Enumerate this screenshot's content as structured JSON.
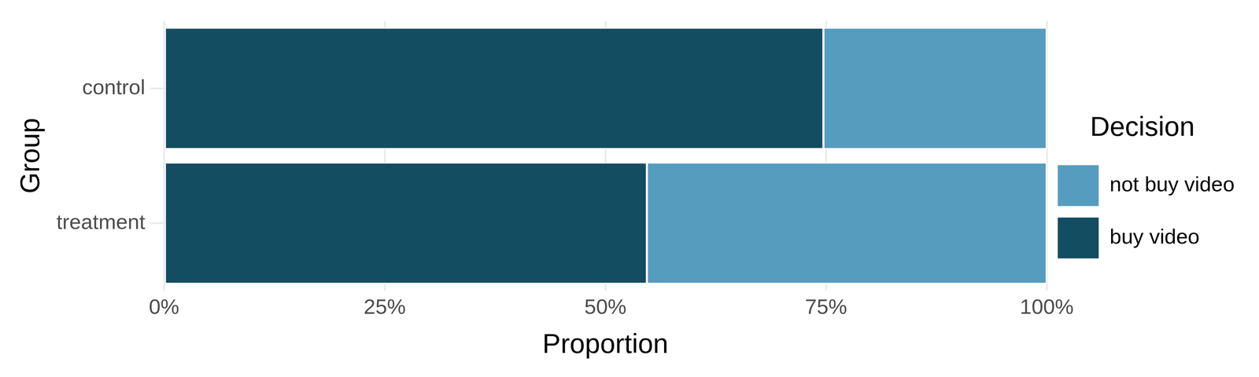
{
  "chart_data": {
    "type": "bar",
    "orientation": "horizontal",
    "stacked": true,
    "x_label": "Proportion",
    "y_label": "Group",
    "legend_title": "Decision",
    "legend": "right",
    "grid": true,
    "categories": [
      "control",
      "treatment"
    ],
    "series": [
      {
        "name": "buy video",
        "color": "#134d61",
        "values": [
          74.7,
          54.7
        ]
      },
      {
        "name": "not buy video",
        "color": "#569cbf",
        "values": [
          25.3,
          45.3
        ]
      }
    ],
    "xlim": [
      0,
      100
    ],
    "xticks": [
      {
        "value": 0,
        "label": "0%"
      },
      {
        "value": 25,
        "label": "25%"
      },
      {
        "value": 50,
        "label": "50%"
      },
      {
        "value": 75,
        "label": "75%"
      },
      {
        "value": 100,
        "label": "100%"
      }
    ]
  }
}
